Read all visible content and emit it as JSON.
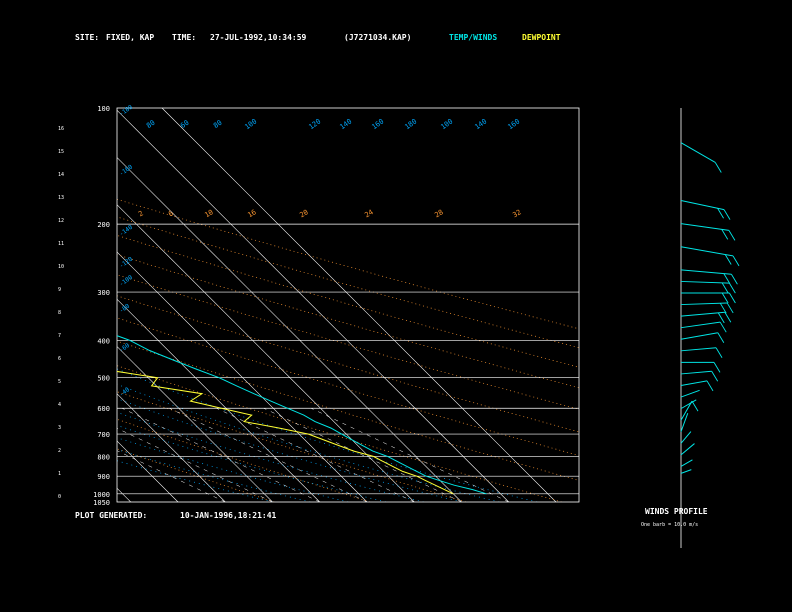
{
  "header": {
    "site_label": "SITE:",
    "site_value": "FIXED, KAP",
    "time_label": "TIME:",
    "time_value": "27-JUL-1992,10:34:59",
    "file": "(J7271034.KAP)",
    "temp_winds_legend": "TEMP/WINDS",
    "dewpoint_legend": "DEWPOINT"
  },
  "footer": {
    "plot_generated_label": "PLOT GENERATED:",
    "plot_generated_value": "10-JAN-1996,18:21:41",
    "winds_profile_title": "WINDS PROFILE",
    "winds_scale": "One barb = 10.0 m/s"
  },
  "colors": {
    "background": "#000000",
    "temperature": "#00e5e5",
    "dewpoint": "#ffff33",
    "grid": "#ffffff",
    "mixing_ratio": "#ff9933",
    "dry_adiabat": "#ff9933",
    "moist_adiabat": "#00aaff"
  },
  "chart_data": {
    "type": "line",
    "title": "",
    "y_pressure_ticks": [
      100,
      200,
      300,
      400,
      500,
      600,
      700,
      800,
      900,
      1000,
      1050
    ],
    "y_height_ticks": [
      0,
      1,
      2,
      3,
      4,
      5,
      6,
      7,
      8,
      9,
      10,
      11,
      12,
      13,
      14,
      15,
      16
    ],
    "top_temp_ticks": [
      -110,
      -100,
      -90,
      -80,
      -70,
      -60,
      -50,
      -40
    ],
    "right_temp_ticks": [
      -30,
      -20,
      -10,
      0,
      10,
      20,
      30
    ],
    "pressure_range": [
      1050,
      100
    ],
    "mixing_ratio_labels": [
      "2",
      "6",
      "10",
      "16",
      "20",
      "24",
      "28",
      "32"
    ],
    "theta_labels": [
      "-180",
      "-160",
      "-140",
      "-120",
      "-100",
      "-80",
      "-60",
      "-40"
    ],
    "top_label_row": [
      "80",
      "60",
      "80",
      "100",
      "120",
      "140",
      "160",
      "180",
      "100",
      "140",
      "160"
    ],
    "series": [
      {
        "name": "TEMP/WINDS",
        "points": [
          [
            1000,
            27
          ],
          [
            975,
            25
          ],
          [
            950,
            22
          ],
          [
            925,
            20
          ],
          [
            900,
            18
          ],
          [
            875,
            17
          ],
          [
            850,
            16
          ],
          [
            825,
            15
          ],
          [
            800,
            14
          ],
          [
            775,
            12
          ],
          [
            750,
            11
          ],
          [
            725,
            10
          ],
          [
            700,
            9
          ],
          [
            675,
            8
          ],
          [
            650,
            6
          ],
          [
            625,
            5
          ],
          [
            600,
            3
          ],
          [
            575,
            1
          ],
          [
            550,
            -1
          ],
          [
            525,
            -3
          ],
          [
            500,
            -5
          ],
          [
            475,
            -8
          ],
          [
            450,
            -11
          ],
          [
            425,
            -14
          ],
          [
            400,
            -16
          ],
          [
            375,
            -20
          ],
          [
            350,
            -23
          ],
          [
            325,
            -27
          ],
          [
            300,
            -31
          ],
          [
            275,
            -36
          ],
          [
            250,
            -41
          ],
          [
            225,
            -47
          ],
          [
            200,
            -53
          ],
          [
            175,
            -59
          ],
          [
            150,
            -63
          ],
          [
            125,
            -67
          ],
          [
            110,
            -64
          ],
          [
            100,
            -58
          ]
        ]
      },
      {
        "name": "DEWPOINT",
        "points": [
          [
            1000,
            20
          ],
          [
            975,
            19
          ],
          [
            950,
            18
          ],
          [
            925,
            17
          ],
          [
            900,
            16
          ],
          [
            875,
            14
          ],
          [
            850,
            13
          ],
          [
            825,
            12
          ],
          [
            800,
            11
          ],
          [
            775,
            8
          ],
          [
            750,
            6
          ],
          [
            725,
            4
          ],
          [
            700,
            2
          ],
          [
            675,
            -3
          ],
          [
            650,
            -9
          ],
          [
            625,
            -6
          ],
          [
            600,
            -11
          ],
          [
            575,
            -16
          ],
          [
            550,
            -12
          ],
          [
            525,
            -21
          ],
          [
            500,
            -18
          ],
          [
            475,
            -28
          ],
          [
            450,
            -26
          ],
          [
            425,
            -38
          ],
          [
            400,
            -41
          ],
          [
            375,
            -39
          ],
          [
            350,
            -47
          ],
          [
            325,
            -46
          ],
          [
            300,
            -55
          ],
          [
            275,
            -59
          ],
          [
            250,
            -70
          ],
          [
            225,
            -74
          ],
          [
            200,
            -76
          ],
          [
            175,
            -79
          ],
          [
            150,
            -82
          ],
          [
            125,
            -78
          ],
          [
            110,
            -72
          ],
          [
            100,
            -62
          ]
        ]
      }
    ],
    "winds_profile": [
      {
        "height_km": 0.2,
        "speed": 5,
        "dir": 250
      },
      {
        "height_km": 0.5,
        "speed": 6,
        "dir": 240
      },
      {
        "height_km": 1.0,
        "speed": 8,
        "dir": 230
      },
      {
        "height_km": 1.5,
        "speed": 7,
        "dir": 220
      },
      {
        "height_km": 2.0,
        "speed": 9,
        "dir": 200
      },
      {
        "height_km": 2.5,
        "speed": 10,
        "dir": 210
      },
      {
        "height_km": 3.0,
        "speed": 8,
        "dir": 240
      },
      {
        "height_km": 3.5,
        "speed": 9,
        "dir": 250
      },
      {
        "height_km": 4.0,
        "speed": 12,
        "dir": 260
      },
      {
        "height_km": 4.5,
        "speed": 14,
        "dir": 265
      },
      {
        "height_km": 5.0,
        "speed": 15,
        "dir": 270
      },
      {
        "height_km": 5.5,
        "speed": 16,
        "dir": 265
      },
      {
        "height_km": 6.0,
        "speed": 17,
        "dir": 260
      },
      {
        "height_km": 6.5,
        "speed": 18,
        "dir": 262
      },
      {
        "height_km": 7.0,
        "speed": 20,
        "dir": 265
      },
      {
        "height_km": 7.5,
        "speed": 21,
        "dir": 268
      },
      {
        "height_km": 8.0,
        "speed": 22,
        "dir": 270
      },
      {
        "height_km": 8.5,
        "speed": 22,
        "dir": 272
      },
      {
        "height_km": 9.0,
        "speed": 23,
        "dir": 275
      },
      {
        "height_km": 10.0,
        "speed": 24,
        "dir": 280
      },
      {
        "height_km": 11.0,
        "speed": 22,
        "dir": 278
      },
      {
        "height_km": 12.0,
        "speed": 20,
        "dir": 282
      },
      {
        "height_km": 14.5,
        "speed": 18,
        "dir": 300
      }
    ]
  }
}
